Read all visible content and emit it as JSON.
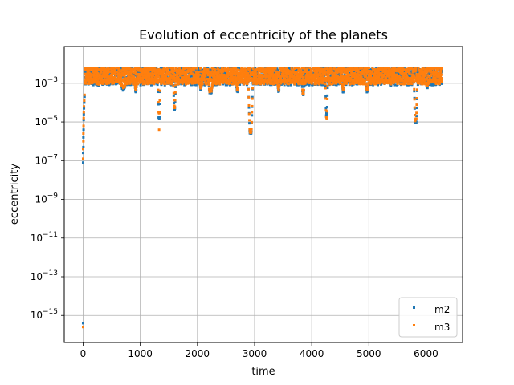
{
  "chart_data": {
    "type": "scatter",
    "title": "Evolution of eccentricity of the planets",
    "xlabel": "time",
    "ylabel": "eccentricity",
    "xlim": [
      -330,
      6640
    ],
    "ylog": true,
    "ylim_exp": [
      -16.4,
      -1.1
    ],
    "grid": true,
    "legend_position": "lower-right",
    "xticks": [
      0,
      1000,
      2000,
      3000,
      4000,
      5000,
      6000
    ],
    "yticks": [
      {
        "exp": -15,
        "label": "10",
        "sup": "−15"
      },
      {
        "exp": -13,
        "label": "10",
        "sup": "−13"
      },
      {
        "exp": -11,
        "label": "10",
        "sup": "−11"
      },
      {
        "exp": -9,
        "label": "10",
        "sup": "−9"
      },
      {
        "exp": -7,
        "label": "10",
        "sup": "−7"
      },
      {
        "exp": -5,
        "label": "10",
        "sup": "−5"
      },
      {
        "exp": -3,
        "label": "10",
        "sup": "−3"
      }
    ],
    "series": [
      {
        "name": "m2",
        "color": "#1f77b4",
        "high_band_exp": [
          -2.9,
          -2.2
        ],
        "low_band_exp": [
          -3.1,
          -2.8
        ],
        "points": [
          [
            0,
            -15.4
          ],
          [
            0,
            -7.1
          ],
          [
            0,
            -6.6
          ],
          [
            5,
            -6.3
          ],
          [
            5,
            -5.8
          ],
          [
            8,
            -5.4
          ],
          [
            10,
            -4.9
          ],
          [
            12,
            -4.6
          ],
          [
            15,
            -4.3
          ],
          [
            20,
            -4.0
          ],
          [
            25,
            -3.7
          ]
        ],
        "dips": [
          {
            "t": 270,
            "w": 40,
            "depth": -3.1
          },
          {
            "t": 700,
            "w": 100,
            "depth": -3.3
          },
          {
            "t": 920,
            "w": 40,
            "depth": -3.4
          },
          {
            "t": 1330,
            "w": 40,
            "depth": -4.8
          },
          {
            "t": 1600,
            "w": 40,
            "depth": -4.3
          },
          {
            "t": 2060,
            "w": 40,
            "depth": -3.3
          },
          {
            "t": 2230,
            "w": 80,
            "depth": -3.5
          },
          {
            "t": 2700,
            "w": 40,
            "depth": -3.4
          },
          {
            "t": 2930,
            "w": 80,
            "depth": -5.6
          },
          {
            "t": 3420,
            "w": 40,
            "depth": -3.4
          },
          {
            "t": 3850,
            "w": 40,
            "depth": -3.6
          },
          {
            "t": 4260,
            "w": 40,
            "depth": -4.6
          },
          {
            "t": 4550,
            "w": 40,
            "depth": -3.4
          },
          {
            "t": 4970,
            "w": 60,
            "depth": -3.4
          },
          {
            "t": 5380,
            "w": 30,
            "depth": -3.1
          },
          {
            "t": 5820,
            "w": 60,
            "depth": -5.0
          },
          {
            "t": 6020,
            "w": 40,
            "depth": -3.2
          }
        ]
      },
      {
        "name": "m3",
        "color": "#ff7f0e",
        "high_band_exp": [
          -2.9,
          -2.2
        ],
        "low_band_exp": [
          -3.05,
          -2.8
        ],
        "points": [
          [
            0,
            -15.6
          ],
          [
            0,
            -6.9
          ],
          [
            0,
            -6.4
          ],
          [
            5,
            -6.0
          ],
          [
            5,
            -5.6
          ],
          [
            8,
            -5.2
          ],
          [
            10,
            -4.8
          ],
          [
            12,
            -4.5
          ],
          [
            15,
            -4.2
          ],
          [
            20,
            -3.9
          ],
          [
            25,
            -3.6
          ],
          [
            1330,
            -5.4
          ]
        ],
        "dips": [
          {
            "t": 270,
            "w": 40,
            "depth": -3.0
          },
          {
            "t": 700,
            "w": 100,
            "depth": -3.2
          },
          {
            "t": 920,
            "w": 40,
            "depth": -3.3
          },
          {
            "t": 1330,
            "w": 40,
            "depth": -4.5
          },
          {
            "t": 1600,
            "w": 40,
            "depth": -4.2
          },
          {
            "t": 2060,
            "w": 40,
            "depth": -3.2
          },
          {
            "t": 2230,
            "w": 80,
            "depth": -3.4
          },
          {
            "t": 2700,
            "w": 40,
            "depth": -3.3
          },
          {
            "t": 2930,
            "w": 80,
            "depth": -5.5
          },
          {
            "t": 3420,
            "w": 40,
            "depth": -3.3
          },
          {
            "t": 3850,
            "w": 40,
            "depth": -3.5
          },
          {
            "t": 4260,
            "w": 40,
            "depth": -4.8
          },
          {
            "t": 4550,
            "w": 40,
            "depth": -3.3
          },
          {
            "t": 4970,
            "w": 60,
            "depth": -3.3
          },
          {
            "t": 5380,
            "w": 30,
            "depth": -3.0
          },
          {
            "t": 5820,
            "w": 60,
            "depth": -4.9
          },
          {
            "t": 6020,
            "w": 40,
            "depth": -3.1
          }
        ]
      }
    ],
    "t_range": [
      0,
      6280
    ]
  }
}
